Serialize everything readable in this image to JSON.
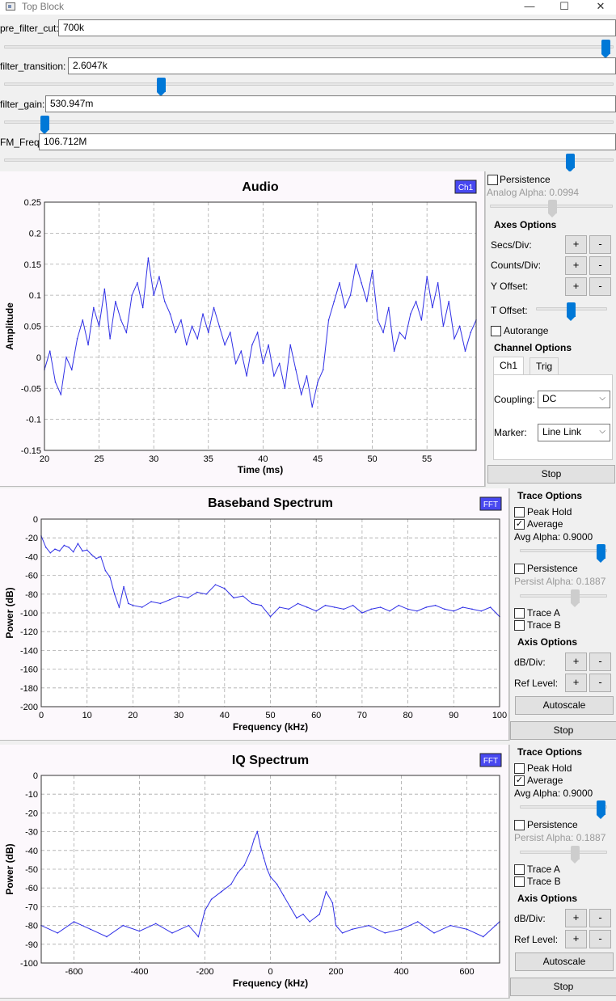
{
  "window": {
    "title": "Top Block",
    "minimize": "—",
    "maximize": "☐",
    "close": "✕"
  },
  "params": [
    {
      "label": "pre_filter_cut:",
      "value": "700k",
      "slider_fraction": 0.995
    },
    {
      "label": "filter_transition:",
      "value": "2.6047k",
      "slider_fraction": 0.255
    },
    {
      "label": "filter_gain:",
      "value": "530.947m",
      "slider_fraction": 0.06
    },
    {
      "label": "FM_Freq:",
      "value": "106.712M",
      "slider_fraction": 0.935
    }
  ],
  "audio_panel": {
    "persistence_label": "Persistence",
    "analog_alpha": "Analog Alpha: 0.0994",
    "axes_options": "Axes Options",
    "secs_div": "Secs/Div:",
    "counts_div": "Counts/Div:",
    "y_offset": "Y Offset:",
    "t_offset": "T Offset:",
    "autorange": "Autorange",
    "channel_options": "Channel Options",
    "tab_ch1": "Ch1",
    "tab_trig": "Trig",
    "coupling_label": "Coupling:",
    "coupling_value": "DC",
    "marker_label": "Marker:",
    "marker_value": "Line Link",
    "stop": "Stop",
    "plus": "+",
    "minus": "-"
  },
  "baseband_panel": {
    "trace_options": "Trace Options",
    "peak_hold": "Peak Hold",
    "average": "Average",
    "avg_alpha": "Avg Alpha: 0.9000",
    "persistence": "Persistence",
    "persist_alpha": "Persist Alpha: 0.1887",
    "trace_a": "Trace A",
    "trace_b": "Trace B",
    "axis_options": "Axis Options",
    "db_div": "dB/Div:",
    "ref_level": "Ref Level:",
    "autoscale": "Autoscale",
    "stop": "Stop",
    "plus": "+",
    "minus": "-",
    "check": "✓"
  },
  "iq_panel": {
    "trace_options": "Trace Options",
    "peak_hold": "Peak Hold",
    "average": "Average",
    "avg_alpha": "Avg Alpha: 0.9000",
    "persistence": "Persistence",
    "persist_alpha": "Persist Alpha: 0.1887",
    "trace_a": "Trace A",
    "trace_b": "Trace B",
    "axis_options": "Axis Options",
    "db_div": "dB/Div:",
    "ref_level": "Ref Level:",
    "autoscale": "Autoscale",
    "stop": "Stop",
    "plus": "+",
    "minus": "-",
    "check": "✓"
  },
  "colors": {
    "trace": "#3030e6",
    "badge": "#4848f0",
    "slider": "#0078d7"
  },
  "chart_data": [
    {
      "type": "line",
      "title": "Audio",
      "badge": "Ch1",
      "xlabel": "Time (ms)",
      "ylabel": "Amplitude",
      "xlim": [
        20,
        59.5
      ],
      "ylim": [
        -0.15,
        0.25
      ],
      "xticks": [
        20,
        25,
        30,
        35,
        40,
        45,
        50,
        55
      ],
      "yticks": [
        -0.15,
        -0.1,
        -0.05,
        0,
        0.05,
        0.1,
        0.15,
        0.2,
        0.25
      ],
      "xtick_labels": [
        "20",
        "25",
        "30",
        "35",
        "40",
        "45",
        "50",
        "55"
      ],
      "ytick_labels": [
        "-0.15",
        "-0.1",
        "-0.05",
        "0",
        "0.05",
        "0.1",
        "0.15",
        "0.2",
        "0.25"
      ],
      "grid": true,
      "series": [
        {
          "x": [
            20,
            20.5,
            21,
            21.5,
            22,
            22.5,
            23,
            23.5,
            24,
            24.5,
            25,
            25.5,
            26,
            26.5,
            27,
            27.5,
            28,
            28.5,
            29,
            29.5,
            30,
            30.5,
            31,
            31.5,
            32,
            32.5,
            33,
            33.5,
            34,
            34.5,
            35,
            35.5,
            36,
            36.5,
            37,
            37.5,
            38,
            38.5,
            39,
            39.5,
            40,
            40.5,
            41,
            41.5,
            42,
            42.5,
            43,
            43.5,
            44,
            44.5,
            45,
            45.5,
            46,
            46.5,
            47,
            47.5,
            48,
            48.5,
            49,
            49.5,
            50,
            50.5,
            51,
            51.5,
            52,
            52.5,
            53,
            53.5,
            54,
            54.5,
            55,
            55.5,
            56,
            56.5,
            57,
            57.5,
            58,
            58.5,
            59,
            59.5
          ],
          "y": [
            -0.02,
            0.01,
            -0.04,
            -0.06,
            0.0,
            -0.02,
            0.03,
            0.06,
            0.02,
            0.08,
            0.05,
            0.11,
            0.03,
            0.09,
            0.06,
            0.04,
            0.1,
            0.12,
            0.08,
            0.16,
            0.1,
            0.13,
            0.09,
            0.07,
            0.04,
            0.06,
            0.02,
            0.05,
            0.03,
            0.07,
            0.04,
            0.08,
            0.05,
            0.02,
            0.04,
            -0.01,
            0.01,
            -0.03,
            0.02,
            0.04,
            -0.01,
            0.02,
            -0.03,
            -0.01,
            -0.05,
            0.02,
            -0.02,
            -0.06,
            -0.03,
            -0.08,
            -0.04,
            -0.02,
            0.06,
            0.09,
            0.12,
            0.08,
            0.1,
            0.15,
            0.12,
            0.09,
            0.14,
            0.06,
            0.04,
            0.08,
            0.01,
            0.04,
            0.03,
            0.07,
            0.09,
            0.06,
            0.13,
            0.08,
            0.12,
            0.05,
            0.09,
            0.03,
            0.05,
            0.01,
            0.04,
            0.06
          ]
        }
      ]
    },
    {
      "type": "line",
      "title": "Baseband Spectrum",
      "badge": "FFT",
      "xlabel": "Frequency (kHz)",
      "ylabel": "Power (dB)",
      "xlim": [
        0,
        100
      ],
      "ylim": [
        -200,
        0
      ],
      "xticks": [
        0,
        10,
        20,
        30,
        40,
        50,
        60,
        70,
        80,
        90,
        100
      ],
      "yticks": [
        -200,
        -180,
        -160,
        -140,
        -120,
        -100,
        -80,
        -60,
        -40,
        -20,
        0
      ],
      "xtick_labels": [
        "0",
        "10",
        "20",
        "30",
        "40",
        "50",
        "60",
        "70",
        "80",
        "90",
        "100"
      ],
      "ytick_labels": [
        "-200",
        "-180",
        "-160",
        "-140",
        "-120",
        "-100",
        "-80",
        "-60",
        "-40",
        "-20",
        "0"
      ],
      "grid": true,
      "series": [
        {
          "x": [
            0,
            1,
            2,
            3,
            4,
            5,
            6,
            7,
            8,
            9,
            10,
            11,
            12,
            13,
            14,
            15,
            16,
            17,
            18,
            19,
            20,
            22,
            24,
            26,
            28,
            30,
            32,
            34,
            36,
            38,
            40,
            42,
            44,
            46,
            48,
            50,
            52,
            54,
            56,
            58,
            60,
            62,
            64,
            66,
            68,
            70,
            72,
            74,
            76,
            78,
            80,
            82,
            84,
            86,
            88,
            90,
            92,
            94,
            96,
            98,
            100
          ],
          "y": [
            -18,
            -30,
            -36,
            -32,
            -34,
            -28,
            -30,
            -35,
            -26,
            -34,
            -33,
            -38,
            -42,
            -40,
            -55,
            -62,
            -80,
            -94,
            -72,
            -90,
            -92,
            -94,
            -88,
            -90,
            -86,
            -82,
            -84,
            -78,
            -80,
            -70,
            -74,
            -84,
            -82,
            -90,
            -92,
            -104,
            -94,
            -96,
            -90,
            -94,
            -98,
            -92,
            -94,
            -96,
            -92,
            -100,
            -96,
            -94,
            -98,
            -92,
            -96,
            -98,
            -94,
            -92,
            -96,
            -98,
            -94,
            -96,
            -98,
            -94,
            -104
          ]
        }
      ]
    },
    {
      "type": "line",
      "title": "IQ Spectrum",
      "badge": "FFT",
      "xlabel": "Frequency (kHz)",
      "ylabel": "Power (dB)",
      "xlim": [
        -700,
        700
      ],
      "ylim": [
        -100,
        0
      ],
      "xticks": [
        -600,
        -400,
        -200,
        0,
        200,
        400,
        600
      ],
      "yticks": [
        -100,
        -90,
        -80,
        -70,
        -60,
        -50,
        -40,
        -30,
        -20,
        -10,
        0
      ],
      "xtick_labels": [
        "-600",
        "-400",
        "-200",
        "0",
        "200",
        "400",
        "600"
      ],
      "ytick_labels": [
        "-100",
        "-90",
        "-80",
        "-70",
        "-60",
        "-50",
        "-40",
        "-30",
        "-20",
        "-10",
        "0"
      ],
      "grid": true,
      "series": [
        {
          "x": [
            -700,
            -650,
            -600,
            -550,
            -500,
            -450,
            -400,
            -350,
            -300,
            -250,
            -220,
            -200,
            -180,
            -150,
            -120,
            -100,
            -80,
            -60,
            -50,
            -40,
            -30,
            -20,
            -10,
            0,
            20,
            40,
            60,
            80,
            100,
            120,
            150,
            170,
            190,
            200,
            220,
            250,
            300,
            350,
            400,
            450,
            500,
            550,
            600,
            650,
            700
          ],
          "y": [
            -80,
            -84,
            -78,
            -82,
            -86,
            -80,
            -83,
            -79,
            -84,
            -80,
            -86,
            -72,
            -66,
            -62,
            -58,
            -52,
            -48,
            -40,
            -34,
            -30,
            -38,
            -44,
            -50,
            -54,
            -58,
            -64,
            -70,
            -76,
            -74,
            -78,
            -74,
            -62,
            -68,
            -80,
            -84,
            -82,
            -80,
            -84,
            -82,
            -78,
            -84,
            -80,
            -82,
            -86,
            -78
          ]
        }
      ]
    }
  ]
}
